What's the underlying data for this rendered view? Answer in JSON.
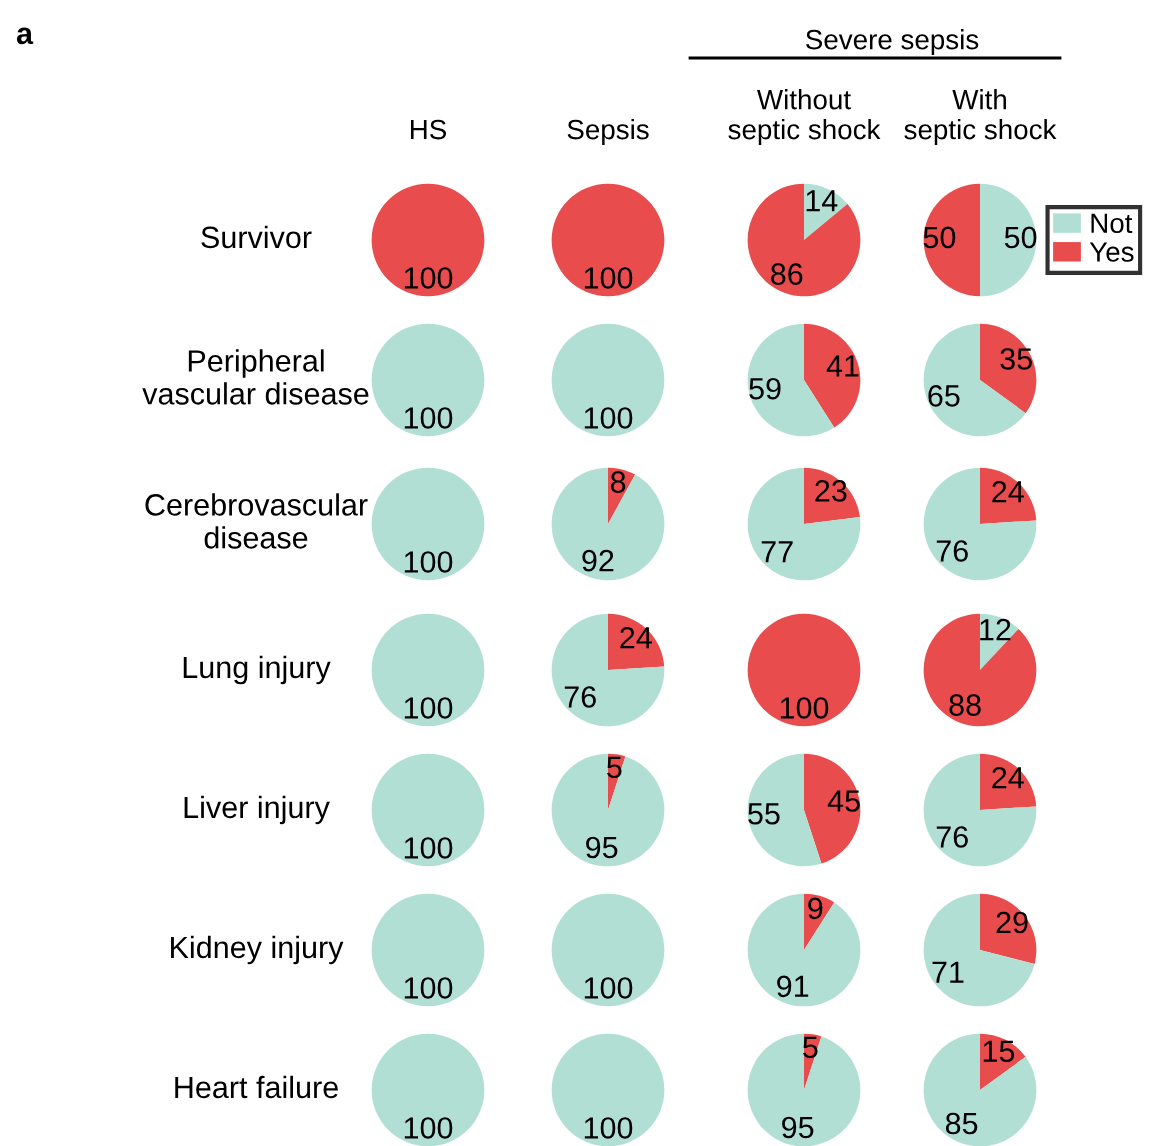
{
  "chart_data": [
    {
      "type": "pie",
      "title": "HS",
      "ylabel": "Survivor",
      "annotations": [
        "a"
      ],
      "categories": [
        null
      ],
      "values": [
        100
      ],
      "colors": [
        "#e84c4c"
      ],
      "data_labels": true
    },
    {
      "type": "pie",
      "title": "Sepsis",
      "categories": [
        null
      ],
      "values": [
        100
      ],
      "colors": [
        "#e84c4c"
      ],
      "data_labels": true
    },
    {
      "type": "pie",
      "title": "Without\nseptic shock",
      "annotations": [
        "Severe sepsis"
      ],
      "categories": [
        null,
        null
      ],
      "values": [
        14,
        86
      ],
      "colors": [
        "#b2dfd4",
        "#e84c4c"
      ],
      "data_labels": true
    },
    {
      "type": "pie",
      "title": "With\nseptic shock",
      "legend": "right",
      "categories": [
        "Not",
        "Yes"
      ],
      "values": [
        50,
        50
      ],
      "colors": [
        "#b2dfd4",
        "#e84c4c"
      ],
      "data_labels": true
    },
    {
      "type": "pie",
      "ylabel": "Peripheral\nvascular disease",
      "categories": [
        null
      ],
      "values": [
        100
      ],
      "colors": [
        "#b2dfd4"
      ],
      "data_labels": true
    },
    {
      "type": "pie",
      "categories": [
        null
      ],
      "values": [
        100
      ],
      "colors": [
        "#b2dfd4"
      ],
      "data_labels": true
    },
    {
      "type": "pie",
      "categories": [
        null,
        null
      ],
      "values": [
        41,
        59
      ],
      "colors": [
        "#e84c4c",
        "#b2dfd4"
      ],
      "data_labels": true
    },
    {
      "type": "pie",
      "categories": [
        null,
        null
      ],
      "values": [
        35,
        65
      ],
      "colors": [
        "#e84c4c",
        "#b2dfd4"
      ],
      "data_labels": true
    },
    {
      "type": "pie",
      "ylabel": "Cerebrovascular\ndisease",
      "categories": [
        null
      ],
      "values": [
        100
      ],
      "colors": [
        "#b2dfd4"
      ],
      "data_labels": true
    },
    {
      "type": "pie",
      "categories": [
        null,
        null
      ],
      "values": [
        8,
        92
      ],
      "colors": [
        "#e84c4c",
        "#b2dfd4"
      ],
      "data_labels": true
    },
    {
      "type": "pie",
      "categories": [
        null,
        null
      ],
      "values": [
        23,
        77
      ],
      "colors": [
        "#e84c4c",
        "#b2dfd4"
      ],
      "data_labels": true
    },
    {
      "type": "pie",
      "categories": [
        null,
        null
      ],
      "values": [
        24,
        76
      ],
      "colors": [
        "#e84c4c",
        "#b2dfd4"
      ],
      "data_labels": true
    },
    {
      "type": "pie",
      "ylabel": "Lung injury",
      "categories": [
        null
      ],
      "values": [
        100
      ],
      "colors": [
        "#b2dfd4"
      ],
      "data_labels": true
    },
    {
      "type": "pie",
      "categories": [
        null,
        null
      ],
      "values": [
        24,
        76
      ],
      "colors": [
        "#e84c4c",
        "#b2dfd4"
      ],
      "data_labels": true
    },
    {
      "type": "pie",
      "categories": [
        null
      ],
      "values": [
        100
      ],
      "colors": [
        "#e84c4c"
      ],
      "data_labels": true
    },
    {
      "type": "pie",
      "categories": [
        null,
        null
      ],
      "values": [
        12,
        88
      ],
      "colors": [
        "#b2dfd4",
        "#e84c4c"
      ],
      "data_labels": true
    },
    {
      "type": "pie",
      "ylabel": "Liver injury",
      "categories": [
        null
      ],
      "values": [
        100
      ],
      "colors": [
        "#b2dfd4"
      ],
      "data_labels": true
    },
    {
      "type": "pie",
      "categories": [
        null,
        null
      ],
      "values": [
        5,
        95
      ],
      "colors": [
        "#e84c4c",
        "#b2dfd4"
      ],
      "data_labels": true
    },
    {
      "type": "pie",
      "categories": [
        null,
        null
      ],
      "values": [
        45,
        55
      ],
      "colors": [
        "#e84c4c",
        "#b2dfd4"
      ],
      "data_labels": true
    },
    {
      "type": "pie",
      "categories": [
        null,
        null
      ],
      "values": [
        24,
        76
      ],
      "colors": [
        "#e84c4c",
        "#b2dfd4"
      ],
      "data_labels": true
    },
    {
      "type": "pie",
      "ylabel": "Kidney injury",
      "categories": [
        null
      ],
      "values": [
        100
      ],
      "colors": [
        "#b2dfd4"
      ],
      "data_labels": true
    },
    {
      "type": "pie",
      "categories": [
        null
      ],
      "values": [
        100
      ],
      "colors": [
        "#b2dfd4"
      ],
      "data_labels": true
    },
    {
      "type": "pie",
      "categories": [
        null,
        null
      ],
      "values": [
        9,
        91
      ],
      "colors": [
        "#e84c4c",
        "#b2dfd4"
      ],
      "data_labels": true
    },
    {
      "type": "pie",
      "categories": [
        null,
        null
      ],
      "values": [
        29,
        71
      ],
      "colors": [
        "#e84c4c",
        "#b2dfd4"
      ],
      "data_labels": true
    },
    {
      "type": "pie",
      "ylabel": "Heart failure",
      "categories": [
        null
      ],
      "values": [
        100
      ],
      "colors": [
        "#b2dfd4"
      ],
      "data_labels": true
    },
    {
      "type": "pie",
      "categories": [
        null
      ],
      "values": [
        100
      ],
      "colors": [
        "#b2dfd4"
      ],
      "data_labels": true
    },
    {
      "type": "pie",
      "categories": [
        null,
        null
      ],
      "values": [
        5,
        95
      ],
      "colors": [
        "#e84c4c",
        "#b2dfd4"
      ],
      "data_labels": true
    },
    {
      "type": "pie",
      "categories": [
        null,
        null
      ],
      "values": [
        15,
        85
      ],
      "colors": [
        "#e84c4c",
        "#b2dfd4"
      ],
      "data_labels": true
    }
  ]
}
